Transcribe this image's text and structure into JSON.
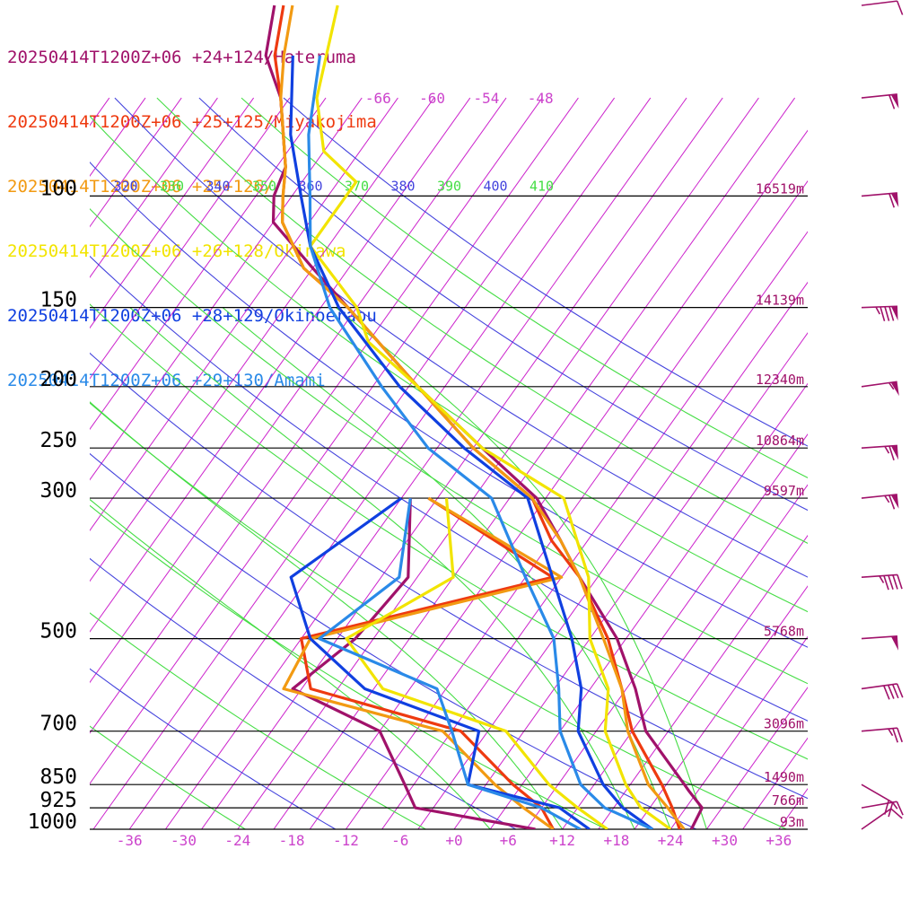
{
  "legend": [
    {
      "label": "20250414T1200Z+06 +24+124/Hateruma",
      "color": "#a0126a"
    },
    {
      "label": "20250414T1200Z+06 +25+125/Miyakojima",
      "color": "#ee3a10"
    },
    {
      "label": "20250414T1200Z+06 +25+126/",
      "color": "#f29a12"
    },
    {
      "label": "20250414T1200Z+06 +26+128/Okinawa",
      "color": "#f2e400"
    },
    {
      "label": "20250414T1200Z+06 +28+129/Okinoerabu",
      "color": "#1040e0"
    },
    {
      "label": "20250414T1200Z+06 +29+130/Amami",
      "color": "#2a8ae8"
    }
  ],
  "chart_data": {
    "type": "line",
    "title": "",
    "xlabel": "",
    "ylabel": "",
    "xlim": [
      -40,
      40
    ],
    "pressure_levels": [
      1000,
      925,
      850,
      700,
      500,
      300,
      250,
      200,
      150,
      100
    ],
    "pressure_labels": [
      "1000",
      "925",
      "850",
      "700",
      "500",
      "300",
      "250",
      "200",
      "150",
      "100"
    ],
    "height_labels": [
      {
        "p": 1000,
        "text": "93m"
      },
      {
        "p": 925,
        "text": "766m"
      },
      {
        "p": 850,
        "text": "1490m"
      },
      {
        "p": 700,
        "text": "3096m"
      },
      {
        "p": 500,
        "text": "5768m"
      },
      {
        "p": 300,
        "text": "9597m"
      },
      {
        "p": 250,
        "text": "10864m"
      },
      {
        "p": 200,
        "text": "12340m"
      },
      {
        "p": 150,
        "text": "14139m"
      },
      {
        "p": 100,
        "text": "16519m"
      }
    ],
    "x_ticks": [
      "-36",
      "-30",
      "-24",
      "-18",
      "-12",
      "-6",
      "+0",
      "+6",
      "+12",
      "+18",
      "+24",
      "+30",
      "+36"
    ],
    "isotherm_top_labels": [
      "-66",
      "-60",
      "-54",
      "-48"
    ],
    "theta_labels": [
      {
        "text": "320",
        "color": "#4444dd"
      },
      {
        "text": "330",
        "color": "#44dd44"
      },
      {
        "text": "340",
        "color": "#4444dd"
      },
      {
        "text": "350",
        "color": "#44dd44"
      },
      {
        "text": "360",
        "color": "#4444dd"
      },
      {
        "text": "370",
        "color": "#44dd44"
      },
      {
        "text": "380",
        "color": "#4444dd"
      },
      {
        "text": "390",
        "color": "#44dd44"
      },
      {
        "text": "400",
        "color": "#4444dd"
      },
      {
        "text": "410",
        "color": "#44dd44"
      }
    ],
    "series": [
      {
        "name": "20250414T1200Z+06 +24+124/Hateruma",
        "color": "#a0126a",
        "temperature": [
          [
            1000,
            26.3
          ],
          [
            925,
            25.8
          ],
          [
            870,
            23
          ],
          [
            850,
            22
          ],
          [
            700,
            13.5
          ],
          [
            600,
            9
          ],
          [
            500,
            3
          ],
          [
            400,
            -6
          ],
          [
            350,
            -11
          ],
          [
            300,
            -17
          ],
          [
            250,
            -27
          ],
          [
            200,
            -39
          ],
          [
            150,
            -53
          ],
          [
            130,
            -60
          ],
          [
            110,
            -68
          ],
          [
            100,
            -70
          ],
          [
            90,
            -71
          ],
          [
            70,
            -77
          ],
          [
            60,
            -82
          ],
          [
            50,
            -85
          ]
        ],
        "dewpoint": [
          [
            1000,
            9
          ],
          [
            925,
            -6
          ],
          [
            850,
            -9
          ],
          [
            700,
            -16
          ],
          [
            600,
            -29
          ],
          [
            500,
            -26
          ],
          [
            400,
            -25
          ],
          [
            300,
            -31
          ]
        ]
      },
      {
        "name": "20250414T1200Z+06 +25+125/Miyakojima",
        "color": "#ee3a10",
        "temperature": [
          [
            1000,
            25
          ],
          [
            925,
            22.5
          ],
          [
            850,
            19.5
          ],
          [
            700,
            12
          ],
          [
            600,
            7.5
          ],
          [
            500,
            2
          ],
          [
            400,
            -6
          ],
          [
            350,
            -12
          ],
          [
            300,
            -17.5
          ],
          [
            250,
            -28
          ],
          [
            200,
            -39
          ],
          [
            150,
            -53
          ],
          [
            130,
            -61
          ],
          [
            110,
            -67
          ],
          [
            100,
            -69
          ],
          [
            90,
            -71
          ],
          [
            70,
            -77
          ],
          [
            60,
            -81
          ],
          [
            50,
            -84
          ]
        ],
        "dewpoint": [
          [
            1000,
            11
          ],
          [
            925,
            8
          ],
          [
            850,
            3
          ],
          [
            700,
            -7
          ],
          [
            600,
            -27
          ],
          [
            500,
            -32
          ],
          [
            400,
            -9
          ],
          [
            300,
            -29
          ]
        ]
      },
      {
        "name": "20250414T1200Z+06 +25+126/",
        "color": "#f29a12",
        "temperature": [
          [
            1000,
            25.5
          ],
          [
            925,
            22
          ],
          [
            850,
            18
          ],
          [
            700,
            11.5
          ],
          [
            600,
            7.5
          ],
          [
            500,
            1.5
          ],
          [
            400,
            -6
          ],
          [
            350,
            -11
          ],
          [
            300,
            -17.5
          ],
          [
            250,
            -28
          ],
          [
            200,
            -39
          ],
          [
            150,
            -53
          ],
          [
            130,
            -61
          ],
          [
            110,
            -67
          ],
          [
            100,
            -69
          ],
          [
            90,
            -71
          ],
          [
            70,
            -77
          ],
          [
            60,
            -80
          ],
          [
            50,
            -83
          ]
        ],
        "dewpoint": [
          [
            1000,
            11
          ],
          [
            925,
            6
          ],
          [
            850,
            1
          ],
          [
            700,
            -9
          ],
          [
            600,
            -30
          ],
          [
            500,
            -31
          ],
          [
            400,
            -8
          ],
          [
            300,
            -29
          ]
        ]
      },
      {
        "name": "20250414T1200Z+06 +26+128/Okinawa",
        "color": "#f2e400",
        "temperature": [
          [
            1000,
            24
          ],
          [
            925,
            19
          ],
          [
            850,
            15.5
          ],
          [
            700,
            9
          ],
          [
            600,
            6
          ],
          [
            500,
            0
          ],
          [
            400,
            -5
          ],
          [
            300,
            -14
          ],
          [
            250,
            -27
          ],
          [
            200,
            -39
          ],
          [
            170,
            -48
          ],
          [
            150,
            -52
          ],
          [
            120,
            -62
          ],
          [
            110,
            -62
          ],
          [
            95,
            -62
          ],
          [
            85,
            -68
          ],
          [
            70,
            -73
          ],
          [
            50,
            -78
          ]
        ],
        "dewpoint": [
          [
            1000,
            17
          ],
          [
            925,
            12
          ],
          [
            850,
            7
          ],
          [
            700,
            -2
          ],
          [
            600,
            -19
          ],
          [
            500,
            -27
          ],
          [
            400,
            -20
          ],
          [
            300,
            -27
          ]
        ]
      },
      {
        "name": "20250414T1200Z+06 +28+129/Okinoerabu",
        "color": "#1040e0",
        "temperature": [
          [
            1000,
            22
          ],
          [
            925,
            17
          ],
          [
            850,
            13
          ],
          [
            700,
            6
          ],
          [
            600,
            3
          ],
          [
            500,
            -2
          ],
          [
            400,
            -9
          ],
          [
            300,
            -18
          ],
          [
            250,
            -29
          ],
          [
            200,
            -41
          ],
          [
            150,
            -54
          ],
          [
            120,
            -62
          ],
          [
            100,
            -67
          ],
          [
            80,
            -73
          ],
          [
            60,
            -79
          ]
        ],
        "dewpoint": [
          [
            1000,
            15
          ],
          [
            925,
            10
          ],
          [
            850,
            -2
          ],
          [
            700,
            -5
          ],
          [
            600,
            -21
          ],
          [
            500,
            -31
          ],
          [
            400,
            -38
          ],
          [
            300,
            -32
          ]
        ]
      },
      {
        "name": "20250414T1200Z+06 +29+130/Amami",
        "color": "#2a8ae8",
        "temperature": [
          [
            1000,
            22
          ],
          [
            925,
            15
          ],
          [
            850,
            10.5
          ],
          [
            700,
            4
          ],
          [
            600,
            0.5
          ],
          [
            500,
            -4
          ],
          [
            400,
            -12
          ],
          [
            300,
            -22
          ],
          [
            250,
            -33
          ],
          [
            200,
            -43
          ],
          [
            150,
            -55
          ],
          [
            120,
            -62
          ],
          [
            100,
            -66
          ],
          [
            80,
            -71
          ],
          [
            60,
            -76
          ]
        ],
        "dewpoint": [
          [
            1000,
            14
          ],
          [
            925,
            8
          ],
          [
            850,
            -2
          ],
          [
            700,
            -8
          ],
          [
            600,
            -13
          ],
          [
            500,
            -30
          ],
          [
            400,
            -26
          ],
          [
            300,
            -31
          ]
        ]
      }
    ],
    "wind_barbs": [
      {
        "p": 1000,
        "speed": 10,
        "dir": 235
      },
      {
        "p": 925,
        "speed": 15,
        "dir": 260
      },
      {
        "p": 850,
        "speed": 20,
        "dir": 300
      },
      {
        "p": 700,
        "speed": 25,
        "dir": 265
      },
      {
        "p": 600,
        "speed": 40,
        "dir": 262
      },
      {
        "p": 500,
        "speed": 50,
        "dir": 266
      },
      {
        "p": 400,
        "speed": 45,
        "dir": 266
      },
      {
        "p": 300,
        "speed": 65,
        "dir": 264
      },
      {
        "p": 250,
        "speed": 65,
        "dir": 266
      },
      {
        "p": 200,
        "speed": 55,
        "dir": 262
      },
      {
        "p": 150,
        "speed": 85,
        "dir": 268
      },
      {
        "p": 100,
        "speed": 60,
        "dir": 265
      },
      {
        "p": 70,
        "speed": 60,
        "dir": 264
      },
      {
        "p": 50,
        "speed": 10,
        "dir": 263
      }
    ],
    "colors": {
      "isobar": "#000000",
      "isotherm": "#cc22cc",
      "dry_adiabat_a": "#4444dd",
      "dry_adiabat_b": "#44dd44",
      "tick_label": "#cc44cc",
      "height_label": "#a0126a",
      "pressure_label": "#000000",
      "barb": "#a0126a"
    }
  }
}
